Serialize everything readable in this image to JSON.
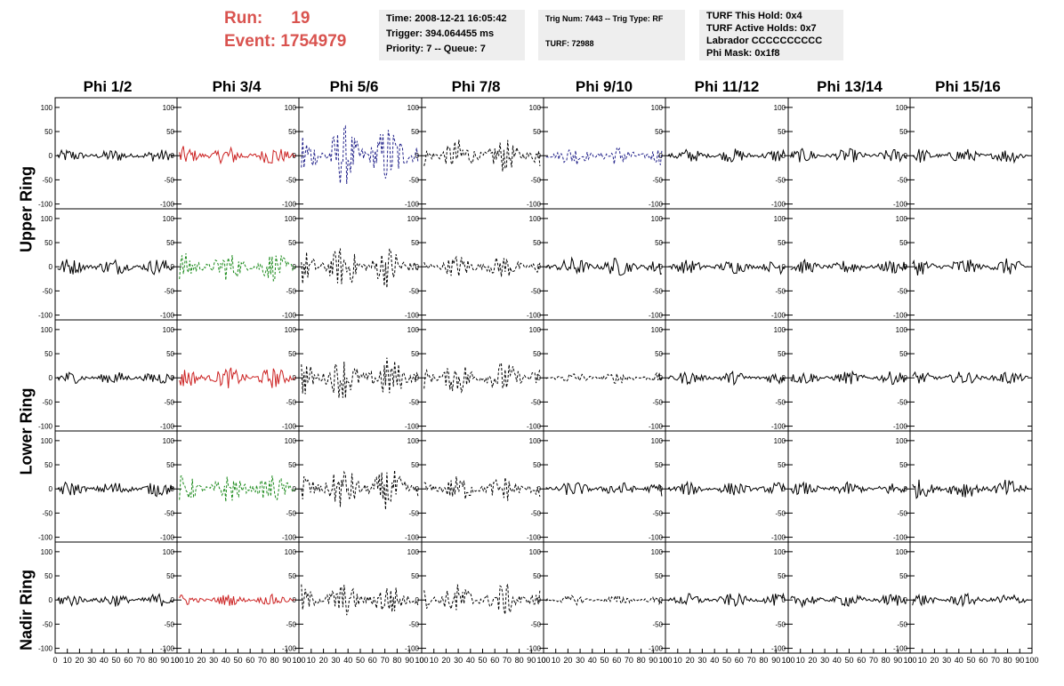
{
  "header": {
    "run_label": "Run:",
    "run_value": "19",
    "event_label": "Event:",
    "event_value": "1754979",
    "time": "Time: 2008-12-21 16:05:42",
    "trigger": "Trigger: 394.064455 ms",
    "priority": "Priority: 7 -- Queue: 7",
    "trig_num": "Trig Num: 7443 -- Trig Type: RF",
    "turf": "TURF: 72988",
    "turf_hold": "TURF This Hold: 0x4",
    "turf_active": "TURF Active Holds: 0x7",
    "labrador": "Labrador CCCCCCCCCC",
    "phi_mask": "Phi Mask: 0x1f8"
  },
  "columns": [
    "Phi 1/2",
    "Phi 3/4",
    "Phi 5/6",
    "Phi 7/8",
    "Phi 9/10",
    "Phi 11/12",
    "Phi 13/14",
    "Phi 15/16"
  ],
  "rings": [
    "Upper Ring",
    "Lower Ring",
    "Nadir Ring"
  ],
  "chart_data": {
    "type": "line",
    "title": "",
    "rows": 5,
    "cols": 8,
    "ylim": [
      -110,
      120
    ],
    "xlim": [
      0,
      100
    ],
    "yticks": [
      -100,
      -50,
      0,
      50,
      100
    ],
    "x_tick_labels": [
      "0",
      "10",
      "20",
      "30",
      "40",
      "50",
      "60",
      "70",
      "80",
      "90",
      "100"
    ],
    "colors": {
      "black": "#000000",
      "red": "#cc2222",
      "green": "#1a8a1a",
      "blue": "#22228a"
    },
    "panels": [
      [
        {
          "color": "black",
          "amp": 14,
          "dashed": false
        },
        {
          "color": "red",
          "amp": 20,
          "dashed": false
        },
        {
          "color": "blue",
          "amp": 65,
          "dashed": true
        },
        {
          "color": "black",
          "amp": 35,
          "dashed": true
        },
        {
          "color": "blue",
          "amp": 20,
          "dashed": true
        },
        {
          "color": "black",
          "amp": 15,
          "dashed": false
        },
        {
          "color": "black",
          "amp": 15,
          "dashed": false
        },
        {
          "color": "black",
          "amp": 16,
          "dashed": false
        }
      ],
      [
        {
          "color": "black",
          "amp": 18,
          "dashed": false
        },
        {
          "color": "green",
          "amp": 30,
          "dashed": true
        },
        {
          "color": "black",
          "amp": 45,
          "dashed": true
        },
        {
          "color": "black",
          "amp": 25,
          "dashed": true
        },
        {
          "color": "black",
          "amp": 20,
          "dashed": false
        },
        {
          "color": "black",
          "amp": 15,
          "dashed": false
        },
        {
          "color": "black",
          "amp": 15,
          "dashed": false
        },
        {
          "color": "black",
          "amp": 18,
          "dashed": false
        }
      ],
      [
        {
          "color": "black",
          "amp": 14,
          "dashed": false
        },
        {
          "color": "red",
          "amp": 22,
          "dashed": false
        },
        {
          "color": "black",
          "amp": 45,
          "dashed": true
        },
        {
          "color": "black",
          "amp": 35,
          "dashed": true
        },
        {
          "color": "black",
          "amp": 12,
          "dashed": true
        },
        {
          "color": "black",
          "amp": 14,
          "dashed": false
        },
        {
          "color": "black",
          "amp": 14,
          "dashed": false
        },
        {
          "color": "black",
          "amp": 14,
          "dashed": false
        }
      ],
      [
        {
          "color": "black",
          "amp": 16,
          "dashed": false
        },
        {
          "color": "green",
          "amp": 30,
          "dashed": true
        },
        {
          "color": "black",
          "amp": 45,
          "dashed": true
        },
        {
          "color": "black",
          "amp": 28,
          "dashed": true
        },
        {
          "color": "black",
          "amp": 16,
          "dashed": false
        },
        {
          "color": "black",
          "amp": 14,
          "dashed": false
        },
        {
          "color": "black",
          "amp": 14,
          "dashed": false
        },
        {
          "color": "black",
          "amp": 20,
          "dashed": false
        }
      ],
      [
        {
          "color": "black",
          "amp": 14,
          "dashed": false
        },
        {
          "color": "red",
          "amp": 12,
          "dashed": false
        },
        {
          "color": "black",
          "amp": 35,
          "dashed": true
        },
        {
          "color": "black",
          "amp": 35,
          "dashed": true
        },
        {
          "color": "black",
          "amp": 10,
          "dashed": true
        },
        {
          "color": "black",
          "amp": 14,
          "dashed": false
        },
        {
          "color": "black",
          "amp": 14,
          "dashed": false
        },
        {
          "color": "black",
          "amp": 14,
          "dashed": false
        }
      ]
    ]
  }
}
